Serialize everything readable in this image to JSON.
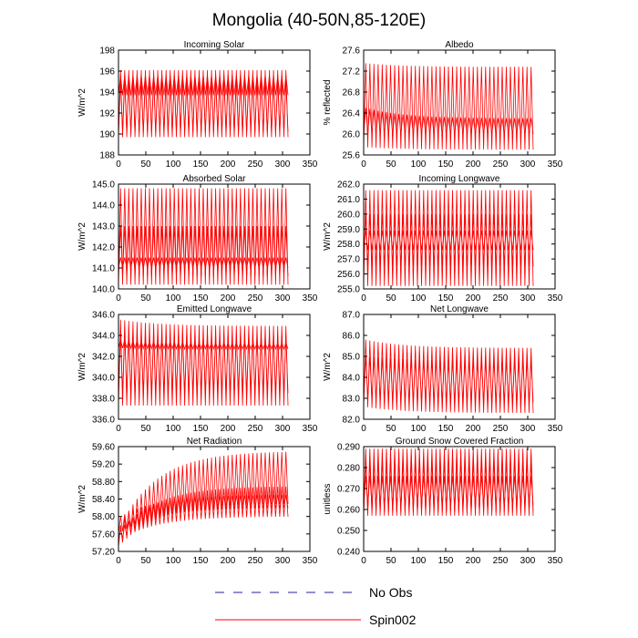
{
  "figure": {
    "title": "Mongolia (40-50N,85-120E)",
    "legend": [
      {
        "label": "No Obs",
        "color": "#2020a0",
        "dash": "dashed"
      },
      {
        "label": "Spin002",
        "color": "#ff0000",
        "dash": "solid"
      }
    ]
  },
  "chart_data": [
    {
      "type": "line",
      "title": "Incoming Solar",
      "ylabel": "W/m^2",
      "xlim": [
        0,
        350
      ],
      "xticks": [
        0,
        50,
        100,
        150,
        200,
        250,
        300,
        350
      ],
      "ylim": [
        188,
        198
      ],
      "yticks": [
        "188",
        "190",
        "192",
        "194",
        "196",
        "198"
      ],
      "series": [
        {
          "name": "Spin002",
          "x_range": [
            0,
            310
          ],
          "cycles": 41,
          "bands": [
            [
              189.7,
              196.1
            ],
            [
              193.7,
              195.6
            ],
            [
              190.2,
              195.0
            ]
          ]
        }
      ]
    },
    {
      "type": "line",
      "title": "Albedo",
      "ylabel": "% reflected",
      "xlim": [
        0,
        350
      ],
      "xticks": [
        0,
        50,
        100,
        150,
        200,
        250,
        300,
        350
      ],
      "ylim": [
        25.6,
        27.6
      ],
      "yticks": [
        "25.6",
        "26.0",
        "26.4",
        "26.8",
        "27.2",
        "27.6"
      ],
      "series": [
        {
          "name": "Spin002",
          "x_range": [
            0,
            310
          ],
          "cycles": 41,
          "bands": [
            [
              25.75,
              27.35,
              25.7,
              27.28
            ],
            [
              26.0,
              26.5,
              26.0,
              26.3
            ]
          ]
        }
      ]
    },
    {
      "type": "line",
      "title": "Absorbed Solar",
      "ylabel": "W/m^2",
      "xlim": [
        0,
        350
      ],
      "xticks": [
        0,
        50,
        100,
        150,
        200,
        250,
        300,
        350
      ],
      "ylim": [
        140.0,
        145.0
      ],
      "yticks": [
        "140.0",
        "141.0",
        "142.0",
        "143.0",
        "144.0",
        "145.0"
      ],
      "series": [
        {
          "name": "Spin002",
          "x_range": [
            0,
            310
          ],
          "cycles": 41,
          "bands": [
            [
              140.2,
              144.8
            ],
            [
              141.0,
              141.5
            ],
            [
              140.6,
              143.0
            ]
          ]
        }
      ]
    },
    {
      "type": "line",
      "title": "Incoming Longwave",
      "ylabel": "W/m^2",
      "xlim": [
        0,
        350
      ],
      "xticks": [
        0,
        50,
        100,
        150,
        200,
        250,
        300,
        350
      ],
      "ylim": [
        255.0,
        262.0
      ],
      "yticks": [
        "255.0",
        "256.0",
        "257.0",
        "258.0",
        "259.0",
        "260.0",
        "261.0",
        "262.0"
      ],
      "series": [
        {
          "name": "Spin002",
          "x_range": [
            0,
            310
          ],
          "cycles": 41,
          "bands": [
            [
              255.2,
              261.6
            ],
            [
              257.6,
              258.9
            ],
            [
              256.5,
              260.0
            ]
          ]
        }
      ]
    },
    {
      "type": "line",
      "title": "Emitted Longwave",
      "ylabel": "W/m^2",
      "xlim": [
        0,
        350
      ],
      "xticks": [
        0,
        50,
        100,
        150,
        200,
        250,
        300,
        350
      ],
      "ylim": [
        336.0,
        346.0
      ],
      "yticks": [
        "336.0",
        "338.0",
        "340.0",
        "342.0",
        "344.0",
        "346.0"
      ],
      "series": [
        {
          "name": "Spin002",
          "x_range": [
            0,
            310
          ],
          "cycles": 41,
          "bands": [
            [
              337.3,
              345.5,
              337.3,
              344.9
            ],
            [
              342.8,
              343.6,
              342.7,
              343.3
            ],
            [
              338.5,
              344.0
            ]
          ]
        }
      ]
    },
    {
      "type": "line",
      "title": "Net Longwave",
      "ylabel": "W/m^2",
      "xlim": [
        0,
        350
      ],
      "xticks": [
        0,
        50,
        100,
        150,
        200,
        250,
        300,
        350
      ],
      "ylim": [
        82.0,
        87.0
      ],
      "yticks": [
        "82.0",
        "83.0",
        "84.0",
        "85.0",
        "86.0",
        "87.0"
      ],
      "series": [
        {
          "name": "Spin002",
          "x_range": [
            0,
            310
          ],
          "cycles": 41,
          "bands": [
            [
              82.6,
              85.8,
              82.3,
              85.4
            ],
            [
              83.0,
              85.0,
              82.8,
              84.8
            ]
          ]
        }
      ]
    },
    {
      "type": "line",
      "title": "Net Radiation",
      "ylabel": "W/m^2",
      "xlim": [
        0,
        350
      ],
      "xticks": [
        0,
        50,
        100,
        150,
        200,
        250,
        300,
        350
      ],
      "ylim": [
        57.2,
        59.6
      ],
      "yticks": [
        "57.20",
        "57.60",
        "58.00",
        "58.40",
        "58.80",
        "59.20",
        "59.60"
      ],
      "series": [
        {
          "name": "Spin002",
          "x_range": [
            0,
            310
          ],
          "cycles": 41,
          "bands": [
            [
              57.3,
              57.8,
              58.3,
              59.5
            ],
            [
              57.45,
              57.7,
              58.0,
              58.7
            ],
            [
              57.6,
              58.0,
              58.2,
              58.5
            ]
          ]
        }
      ]
    },
    {
      "type": "line",
      "title": "Ground Snow Covered Fraction",
      "ylabel": "unitless",
      "xlim": [
        0,
        350
      ],
      "xticks": [
        0,
        50,
        100,
        150,
        200,
        250,
        300,
        350
      ],
      "ylim": [
        0.24,
        0.29
      ],
      "yticks": [
        "0.240",
        "0.250",
        "0.260",
        "0.270",
        "0.280",
        "0.290"
      ],
      "series": [
        {
          "name": "Spin002",
          "x_range": [
            0,
            310
          ],
          "cycles": 41,
          "bands": [
            [
              0.257,
              0.289
            ],
            [
              0.262,
              0.276
            ],
            [
              0.259,
              0.283
            ]
          ]
        }
      ]
    }
  ]
}
